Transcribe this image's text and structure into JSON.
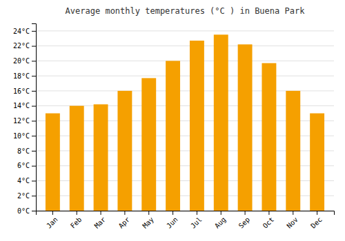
{
  "chart_data": {
    "type": "bar",
    "title": "Average monthly temperatures (°C ) in Buena Park",
    "categories": [
      "Jan",
      "Feb",
      "Mar",
      "Apr",
      "May",
      "Jun",
      "Jul",
      "Aug",
      "Sep",
      "Oct",
      "Nov",
      "Dec"
    ],
    "values": [
      13.0,
      14.0,
      14.2,
      16.0,
      17.7,
      20.0,
      22.7,
      23.5,
      22.2,
      19.7,
      16.0,
      13.0
    ],
    "color": "#F5A000",
    "ylim": [
      0,
      25
    ],
    "yticks": [
      {
        "value": 0,
        "label": "0°C"
      },
      {
        "value": 2,
        "label": "2°C"
      },
      {
        "value": 4,
        "label": "4°C"
      },
      {
        "value": 6,
        "label": "6°C"
      },
      {
        "value": 8,
        "label": "8°C"
      },
      {
        "value": 10,
        "label": "10°C"
      },
      {
        "value": 12,
        "label": "12°C"
      },
      {
        "value": 14,
        "label": "14°C"
      },
      {
        "value": 16,
        "label": "16°C"
      },
      {
        "value": 18,
        "label": "18°C"
      },
      {
        "value": 20,
        "label": "20°C"
      },
      {
        "value": 22,
        "label": "22°C"
      },
      {
        "value": 24,
        "label": "24°C"
      }
    ],
    "grid": true
  }
}
